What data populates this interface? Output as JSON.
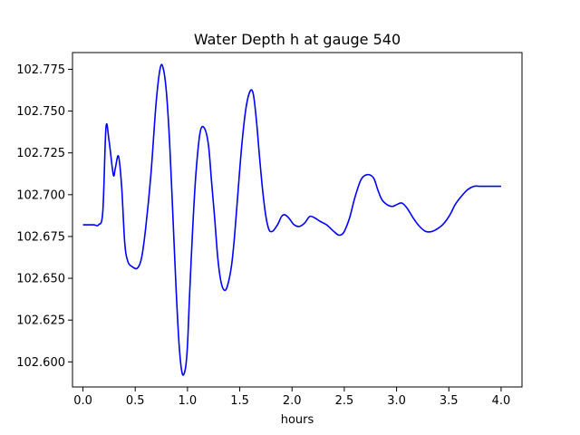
{
  "chart_data": {
    "type": "line",
    "title": "Water Depth h at gauge 540",
    "xlabel": "hours",
    "ylabel": "",
    "xlim": [
      -0.1,
      4.2
    ],
    "ylim": [
      102.585,
      102.785
    ],
    "xticks": [
      0.0,
      0.5,
      1.0,
      1.5,
      2.0,
      2.5,
      3.0,
      3.5,
      4.0
    ],
    "xtick_labels": [
      "0.0",
      "0.5",
      "1.0",
      "1.5",
      "2.0",
      "2.5",
      "3.0",
      "3.5",
      "4.0"
    ],
    "yticks": [
      102.6,
      102.625,
      102.65,
      102.675,
      102.7,
      102.725,
      102.75,
      102.775
    ],
    "ytick_labels": [
      "102.600",
      "102.625",
      "102.650",
      "102.675",
      "102.700",
      "102.725",
      "102.750",
      "102.775"
    ],
    "grid": false,
    "legend": "none",
    "series": [
      {
        "color": "#0000ff",
        "x": [
          0.0,
          0.1,
          0.15,
          0.19,
          0.22,
          0.25,
          0.29,
          0.31,
          0.34,
          0.37,
          0.4,
          0.43,
          0.47,
          0.52,
          0.56,
          0.6,
          0.65,
          0.7,
          0.74,
          0.77,
          0.8,
          0.83,
          0.86,
          0.89,
          0.92,
          0.95,
          0.98,
          1.0,
          1.02,
          1.05,
          1.08,
          1.12,
          1.16,
          1.2,
          1.23,
          1.26,
          1.29,
          1.32,
          1.35,
          1.38,
          1.42,
          1.45,
          1.48,
          1.52,
          1.56,
          1.6,
          1.63,
          1.66,
          1.69,
          1.72,
          1.75,
          1.78,
          1.81,
          1.84,
          1.87,
          1.9,
          1.93,
          1.97,
          2.02,
          2.07,
          2.12,
          2.17,
          2.22,
          2.27,
          2.33,
          2.4,
          2.44,
          2.47,
          2.5,
          2.55,
          2.6,
          2.66,
          2.72,
          2.78,
          2.82,
          2.86,
          2.91,
          2.96,
          3.0,
          3.05,
          3.1,
          3.16,
          3.22,
          3.28,
          3.34,
          3.4,
          3.44,
          3.48,
          3.52,
          3.56,
          3.62,
          3.68,
          3.74,
          3.8,
          3.86,
          3.92,
          3.97,
          4.0
        ],
        "y": [
          102.682,
          102.682,
          102.682,
          102.69,
          102.74,
          102.732,
          102.712,
          102.716,
          102.723,
          102.705,
          102.671,
          102.66,
          102.657,
          102.656,
          102.662,
          102.68,
          102.712,
          102.755,
          102.776,
          102.775,
          102.76,
          102.73,
          102.688,
          102.645,
          102.61,
          102.593,
          102.596,
          102.61,
          102.64,
          102.68,
          102.712,
          102.737,
          102.74,
          102.73,
          102.708,
          102.686,
          102.662,
          102.648,
          102.643,
          102.645,
          102.657,
          102.675,
          102.699,
          102.73,
          102.752,
          102.762,
          102.76,
          102.744,
          102.722,
          102.702,
          102.687,
          102.679,
          102.678,
          102.68,
          102.683,
          102.687,
          102.688,
          102.686,
          102.682,
          102.681,
          102.683,
          102.687,
          102.686,
          102.684,
          102.682,
          102.678,
          102.676,
          102.676,
          102.678,
          102.686,
          102.698,
          102.709,
          102.712,
          102.71,
          102.703,
          102.697,
          102.694,
          102.693,
          102.694,
          102.695,
          102.692,
          102.686,
          102.681,
          102.678,
          102.678,
          102.68,
          102.682,
          102.685,
          102.689,
          102.694,
          102.699,
          102.703,
          102.705,
          102.705,
          102.705,
          102.705,
          102.705,
          102.705
        ]
      }
    ]
  }
}
